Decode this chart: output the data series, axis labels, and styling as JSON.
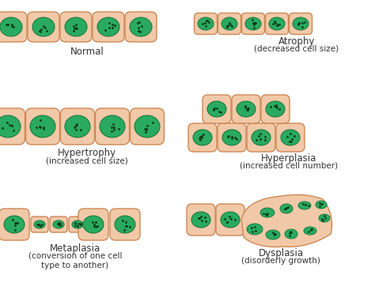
{
  "bg_color": "#ffffff",
  "cell_fill": "#f2c9a8",
  "cell_edge": "#cc8855",
  "nucleus_fill": "#2aaa60",
  "nucleus_edge": "#1a7a40",
  "dot_color": "#0a3a18",
  "title_fontsize": 8.5,
  "subtitle_fontsize": 7.5,
  "panels": [
    {
      "label": "Normal",
      "sublabel": ""
    },
    {
      "label": "Atrophy",
      "sublabel": "(decreased cell size)"
    },
    {
      "label": "Hypertrophy",
      "sublabel": "(increased cell size)"
    },
    {
      "label": "Hyperplasia",
      "sublabel": "(increased cell number)"
    },
    {
      "label": "Metaplasia",
      "sublabel": "(conversion of one cell\ntype to another)"
    },
    {
      "label": "Dysplasia",
      "sublabel": "(disorderly growth)"
    }
  ]
}
